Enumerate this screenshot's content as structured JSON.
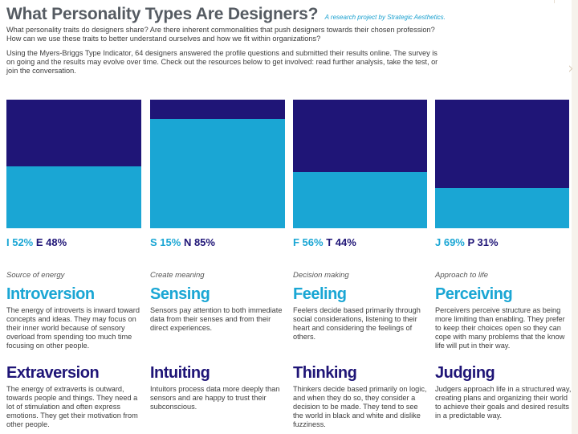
{
  "header": {
    "title": "What Personality Types Are Designers?",
    "tagline": "A research project by Strategic Aesthetics.",
    "intro_1": "What personality traits do designers share? Are there inherent commonalities that push designers towards their chosen profession? How can we use these traits to better understand ourselves and how we fit within organizations?",
    "intro_2": "Using the Myers-Briggs Type Indicator, 64 designers answered the profile questions and submitted their results online. The survey is on going and the results may evolve over time. Check out the resources below to get involved: read further analysis, take the test, or join the conversation."
  },
  "colors": {
    "dark": "#1f1577",
    "light": "#1aa6d4"
  },
  "chart_data": {
    "type": "bar",
    "categories": [
      "I/E",
      "S/N",
      "F/T",
      "J/P"
    ],
    "series": [
      {
        "values": [
          52,
          15,
          56,
          69
        ]
      },
      {
        "values": [
          48,
          85,
          44,
          31
        ]
      }
    ],
    "ylim": [
      0,
      100
    ]
  },
  "columns": [
    {
      "pct_first": "I 52%",
      "pct_second": "E 48%",
      "category": "Source of energy",
      "trait_a": "Introversion",
      "desc_a": "The energy of introverts is inward toward concepts and ideas. They may focus on their inner world because of sensory overload from spending too much time focusing on other people.",
      "trait_b": "Extraversion",
      "desc_b": "The energy of extraverts is outward, towards people and things. They need a lot of stimulation and often express emotions. They get their motivation from other people."
    },
    {
      "pct_first": "S 15%",
      "pct_second": "N 85%",
      "category": "Create meaning",
      "trait_a": "Sensing",
      "desc_a": "Sensors pay attention to both immediate data from their senses and from their direct experiences.",
      "trait_b": "Intuiting",
      "desc_b": "Intuitors process data more deeply than sensors and are happy to trust their subconscious."
    },
    {
      "pct_first": "F 56%",
      "pct_second": "T 44%",
      "category": "Decision making",
      "trait_a": "Feeling",
      "desc_a": "Feelers decide based primarily through social considerations, listening to their heart and considering the feelings of others.",
      "trait_b": "Thinking",
      "desc_b": "Thinkers decide based primarily on logic, and when they do so, they consider a decision to be made. They tend to see the world in black and white and dislike fuzziness."
    },
    {
      "pct_first": "J 69%",
      "pct_second": "P 31%",
      "category": "Approach to life",
      "trait_a": "Perceiving",
      "desc_a": "Perceivers perceive structure as being more limiting than enabling. They prefer to keep their choices open so they can cope with many problems that the know life will put in their way.",
      "trait_b": "Judging",
      "desc_b": "Judgers approach life in a structured way, creating plans and organizing their world to achieve their goals and desired results in a predictable way."
    }
  ]
}
